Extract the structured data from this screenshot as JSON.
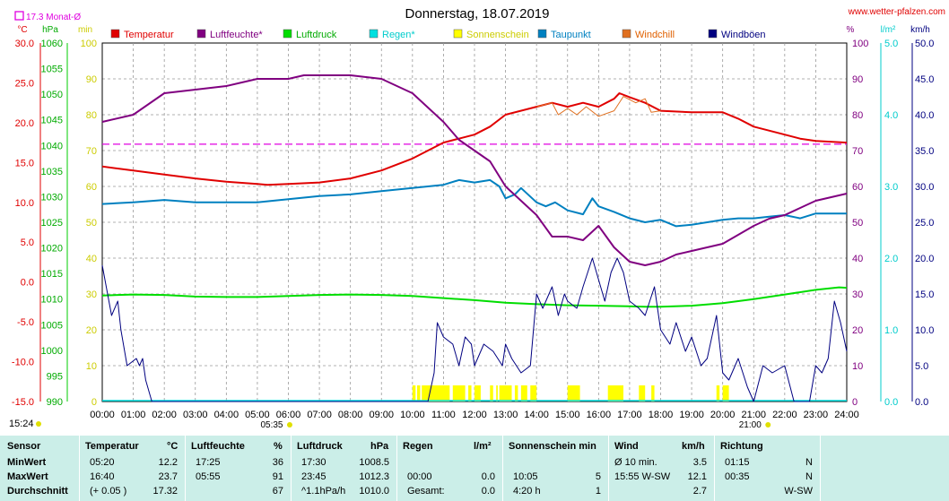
{
  "header": {
    "title": "Donnerstag, 18.07.2019",
    "site": "www.wetter-pfalzen.com",
    "avg_note": "17.3 Monat-Ø",
    "current_time": "15:24"
  },
  "colors": {
    "temperature": "#e00000",
    "humidity": "#800080",
    "pressure": "#00dd00",
    "rain": "#00e0e0",
    "sunshine": "#ffff00",
    "dewpoint": "#0080c0",
    "windchill": "#e07020",
    "windgust": "#000080",
    "avgline": "#e000e0",
    "grid": "#999999",
    "table_bg": "#cbeee8"
  },
  "chart_data": {
    "type": "line",
    "x_ticks": [
      "00:00",
      "01:00",
      "02:00",
      "03:00",
      "04:00",
      "05:00",
      "06:00",
      "07:00",
      "08:00",
      "09:00",
      "10:00",
      "11:00",
      "12:00",
      "13:00",
      "14:00",
      "15:00",
      "16:00",
      "17:00",
      "18:00",
      "19:00",
      "20:00",
      "21:00",
      "22:00",
      "23:00",
      "24:00"
    ],
    "x_marks": [
      {
        "label": "05:35",
        "hour": 5.58,
        "color": "#e0e000"
      },
      {
        "label": "21:00",
        "hour": 21.0,
        "color": "#e0e000"
      }
    ],
    "axes": {
      "temp": {
        "unit": "°C",
        "min": -15,
        "max": 30,
        "ticks": [
          "30.0",
          "25.0",
          "20.0",
          "15.0",
          "10.0",
          "5.0",
          "0.0",
          "-5.0",
          "-10.0",
          "-15.0"
        ]
      },
      "pressure": {
        "unit": "hPa",
        "min": 990,
        "max": 1060,
        "ticks": [
          "1060",
          "1055",
          "1050",
          "1045",
          "1040",
          "1035",
          "1030",
          "1025",
          "1020",
          "1015",
          "1010",
          "1005",
          "1000",
          "995",
          "990"
        ]
      },
      "minutes": {
        "unit": "min",
        "min": 0,
        "max": 100,
        "ticks": [
          "100",
          "90",
          "80",
          "70",
          "60",
          "50",
          "40",
          "30",
          "20",
          "10",
          "0"
        ]
      },
      "percent": {
        "unit": "%",
        "min": 0,
        "max": 100,
        "ticks": [
          "100",
          "90",
          "80",
          "70",
          "60",
          "50",
          "40",
          "30",
          "20",
          "10",
          "0"
        ]
      },
      "rain": {
        "unit": "l/m²",
        "min": 0,
        "max": 5,
        "ticks": [
          "5.0",
          "4.0",
          "3.0",
          "2.0",
          "1.0",
          "0.0"
        ]
      },
      "wind": {
        "unit": "km/h",
        "min": 0,
        "max": 50,
        "ticks": [
          "50.0",
          "45.0",
          "40.0",
          "35.0",
          "30.0",
          "25.0",
          "20.0",
          "15.0",
          "10.0",
          "5.0",
          "0.0"
        ]
      }
    },
    "legend": [
      "Temperatur",
      "Luftfeuchte*",
      "Luftdruck",
      "Regen*",
      "Sonnenschein",
      "Taupunkt",
      "Windchill",
      "Windböen"
    ],
    "avg_temp": 17.3,
    "series": [
      {
        "name": "Temperatur",
        "axis": "temp",
        "color": "#e00000",
        "points": [
          [
            0,
            14.5
          ],
          [
            1,
            14.0
          ],
          [
            2,
            13.5
          ],
          [
            3,
            13.0
          ],
          [
            4,
            12.6
          ],
          [
            5,
            12.3
          ],
          [
            5.33,
            12.2
          ],
          [
            6,
            12.3
          ],
          [
            7,
            12.5
          ],
          [
            8,
            13.0
          ],
          [
            9,
            14.0
          ],
          [
            10,
            15.5
          ],
          [
            10.5,
            16.5
          ],
          [
            11,
            17.5
          ],
          [
            12,
            18.5
          ],
          [
            12.5,
            19.5
          ],
          [
            13,
            21.0
          ],
          [
            14,
            22.0
          ],
          [
            14.5,
            22.5
          ],
          [
            15,
            22.0
          ],
          [
            15.5,
            22.5
          ],
          [
            16,
            22.0
          ],
          [
            16.5,
            23.0
          ],
          [
            16.67,
            23.7
          ],
          [
            17,
            23.2
          ],
          [
            17.5,
            22.5
          ],
          [
            18,
            21.5
          ],
          [
            19,
            21.3
          ],
          [
            20,
            21.3
          ],
          [
            20.5,
            20.5
          ],
          [
            21,
            19.5
          ],
          [
            22,
            18.5
          ],
          [
            22.5,
            18.0
          ],
          [
            23,
            17.7
          ],
          [
            24,
            17.5
          ]
        ]
      },
      {
        "name": "Windchill",
        "axis": "temp",
        "color": "#e07020",
        "points": [
          [
            14,
            22.0
          ],
          [
            14.5,
            22.5
          ],
          [
            14.7,
            21.0
          ],
          [
            15,
            21.8
          ],
          [
            15.3,
            21.0
          ],
          [
            15.6,
            22.0
          ],
          [
            16,
            20.8
          ],
          [
            16.5,
            21.5
          ],
          [
            16.8,
            23.3
          ],
          [
            17.2,
            22.5
          ],
          [
            17.5,
            23.0
          ],
          [
            17.7,
            21.3
          ],
          [
            18,
            21.5
          ]
        ]
      },
      {
        "name": "Taupunkt",
        "axis": "temp",
        "color": "#0080c0",
        "points": [
          [
            0,
            9.8
          ],
          [
            1,
            10.0
          ],
          [
            2,
            10.3
          ],
          [
            3,
            10.0
          ],
          [
            4,
            10.0
          ],
          [
            5,
            10.0
          ],
          [
            6,
            10.4
          ],
          [
            7,
            10.8
          ],
          [
            8,
            11.0
          ],
          [
            9,
            11.4
          ],
          [
            10,
            11.8
          ],
          [
            11,
            12.2
          ],
          [
            11.5,
            12.8
          ],
          [
            12,
            12.5
          ],
          [
            12.5,
            12.8
          ],
          [
            12.8,
            12.0
          ],
          [
            13,
            10.5
          ],
          [
            13.3,
            11.0
          ],
          [
            13.5,
            11.8
          ],
          [
            14,
            10.0
          ],
          [
            14.3,
            9.5
          ],
          [
            14.6,
            10.0
          ],
          [
            15,
            9.0
          ],
          [
            15.5,
            8.5
          ],
          [
            15.8,
            10.5
          ],
          [
            16,
            9.5
          ],
          [
            16.5,
            8.8
          ],
          [
            17,
            8.0
          ],
          [
            17.5,
            7.5
          ],
          [
            18,
            7.8
          ],
          [
            18.5,
            7.0
          ],
          [
            19,
            7.2
          ],
          [
            19.5,
            7.5
          ],
          [
            20,
            7.8
          ],
          [
            20.5,
            8.0
          ],
          [
            21,
            8.0
          ],
          [
            21.5,
            8.2
          ],
          [
            22,
            8.4
          ],
          [
            22.5,
            8.0
          ],
          [
            23,
            8.6
          ],
          [
            24,
            8.6
          ]
        ]
      },
      {
        "name": "Luftfeuchte",
        "axis": "percent",
        "color": "#800080",
        "points": [
          [
            0,
            78
          ],
          [
            1,
            80
          ],
          [
            2,
            86
          ],
          [
            3,
            87
          ],
          [
            4,
            88
          ],
          [
            4.5,
            89
          ],
          [
            5,
            90
          ],
          [
            6,
            90
          ],
          [
            6.5,
            91
          ],
          [
            7,
            91
          ],
          [
            8,
            91
          ],
          [
            9,
            90
          ],
          [
            10,
            86
          ],
          [
            11,
            78
          ],
          [
            11.5,
            73
          ],
          [
            12,
            70
          ],
          [
            12.5,
            67
          ],
          [
            13,
            60
          ],
          [
            13.5,
            56
          ],
          [
            14,
            52
          ],
          [
            14.5,
            46
          ],
          [
            15,
            46
          ],
          [
            15.5,
            45
          ],
          [
            16,
            49
          ],
          [
            16.5,
            43
          ],
          [
            17,
            39
          ],
          [
            17.5,
            38
          ],
          [
            18,
            39
          ],
          [
            18.5,
            41
          ],
          [
            19,
            42
          ],
          [
            20,
            44
          ],
          [
            21,
            49
          ],
          [
            21.5,
            51
          ],
          [
            22,
            52
          ],
          [
            22.5,
            54
          ],
          [
            23,
            56
          ],
          [
            24,
            58
          ]
        ]
      },
      {
        "name": "Luftdruck",
        "axis": "pressure",
        "color": "#00dd00",
        "points": [
          [
            0,
            1010.7
          ],
          [
            1,
            1010.9
          ],
          [
            2,
            1010.8
          ],
          [
            3,
            1010.5
          ],
          [
            4,
            1010.4
          ],
          [
            5,
            1010.4
          ],
          [
            6,
            1010.6
          ],
          [
            7,
            1010.8
          ],
          [
            8,
            1010.9
          ],
          [
            9,
            1010.8
          ],
          [
            10,
            1010.6
          ],
          [
            11,
            1010.2
          ],
          [
            12,
            1009.8
          ],
          [
            13,
            1009.3
          ],
          [
            14,
            1009.0
          ],
          [
            15,
            1008.8
          ],
          [
            16,
            1008.7
          ],
          [
            17,
            1008.6
          ],
          [
            17.5,
            1008.5
          ],
          [
            18,
            1008.5
          ],
          [
            19,
            1008.7
          ],
          [
            20,
            1009.2
          ],
          [
            21,
            1010.0
          ],
          [
            22,
            1010.9
          ],
          [
            23,
            1011.8
          ],
          [
            23.75,
            1012.3
          ],
          [
            24,
            1012.2
          ]
        ]
      },
      {
        "name": "Windböen",
        "axis": "wind",
        "color": "#000080",
        "points": [
          [
            0,
            19
          ],
          [
            0.3,
            12
          ],
          [
            0.5,
            14
          ],
          [
            0.6,
            10
          ],
          [
            0.8,
            5
          ],
          [
            1.1,
            6
          ],
          [
            1.2,
            5
          ],
          [
            1.3,
            6
          ],
          [
            1.4,
            3
          ],
          [
            1.6,
            0
          ],
          [
            10.5,
            0
          ],
          [
            10.7,
            4
          ],
          [
            10.8,
            11
          ],
          [
            11,
            9
          ],
          [
            11.3,
            8
          ],
          [
            11.5,
            5
          ],
          [
            11.7,
            9
          ],
          [
            11.9,
            8
          ],
          [
            12,
            5
          ],
          [
            12.3,
            8
          ],
          [
            12.6,
            7
          ],
          [
            12.9,
            5
          ],
          [
            13,
            8
          ],
          [
            13.2,
            6
          ],
          [
            13.5,
            4
          ],
          [
            13.8,
            5
          ],
          [
            14,
            15
          ],
          [
            14.2,
            13
          ],
          [
            14.5,
            16
          ],
          [
            14.7,
            12
          ],
          [
            14.9,
            15
          ],
          [
            15,
            14
          ],
          [
            15.3,
            13
          ],
          [
            15.5,
            16
          ],
          [
            15.8,
            20
          ],
          [
            16,
            17
          ],
          [
            16.2,
            14
          ],
          [
            16.4,
            18
          ],
          [
            16.6,
            20
          ],
          [
            16.8,
            18
          ],
          [
            17,
            14
          ],
          [
            17.3,
            13
          ],
          [
            17.5,
            12
          ],
          [
            17.8,
            16
          ],
          [
            18,
            10
          ],
          [
            18.3,
            8
          ],
          [
            18.5,
            11
          ],
          [
            18.8,
            7
          ],
          [
            19,
            9
          ],
          [
            19.3,
            5
          ],
          [
            19.5,
            6
          ],
          [
            19.8,
            12
          ],
          [
            20,
            4
          ],
          [
            20.2,
            3
          ],
          [
            20.5,
            6
          ],
          [
            20.8,
            2
          ],
          [
            21,
            0
          ],
          [
            21.3,
            5
          ],
          [
            21.6,
            4
          ],
          [
            22,
            5
          ],
          [
            22.3,
            0
          ],
          [
            22.6,
            0
          ],
          [
            22.8,
            0
          ],
          [
            23,
            5
          ],
          [
            23.2,
            4
          ],
          [
            23.4,
            6
          ],
          [
            23.6,
            14
          ],
          [
            23.8,
            11
          ],
          [
            24,
            7
          ]
        ]
      }
    ],
    "sunshine_hours": [
      [
        10.0,
        10.1
      ],
      [
        10.15,
        10.25
      ],
      [
        10.3,
        11.2
      ],
      [
        11.3,
        11.7
      ],
      [
        11.8,
        11.9
      ],
      [
        12,
        12.2
      ],
      [
        12.5,
        12.6
      ],
      [
        12.7,
        12.75
      ],
      [
        12.8,
        13.2
      ],
      [
        13.3,
        13.4
      ],
      [
        13.5,
        13.7
      ],
      [
        13.8,
        14.0
      ],
      [
        15.0,
        15.4
      ],
      [
        16.3,
        16.8
      ],
      [
        17.3,
        17.5
      ],
      [
        17.7,
        17.8
      ],
      [
        19.8,
        19.9
      ],
      [
        20.0,
        20.2
      ]
    ]
  },
  "table": {
    "columns": [
      {
        "header": "Sensor",
        "unit": ""
      },
      {
        "header": "Temperatur",
        "unit": "°C"
      },
      {
        "header": "Luftfeuchte",
        "unit": "%"
      },
      {
        "header": "Luftdruck",
        "unit": "hPa"
      },
      {
        "header": "Regen",
        "unit": "l/m²"
      },
      {
        "header": "Sonnenschein min",
        "unit": ""
      },
      {
        "header": "Wind",
        "unit": "km/h"
      },
      {
        "header": "Richtung",
        "unit": ""
      }
    ],
    "rows": [
      {
        "label": "MinWert",
        "temp_time": "05:20",
        "temp_val": "12.2",
        "hum_time": "17:25",
        "hum_val": "36",
        "press_time": "17:30",
        "press_val": "1008.5",
        "rain_time": "",
        "rain_val": "",
        "sun_time": "",
        "sun_val": "",
        "wind_time": "Ø 10 min.",
        "wind_val": "3.5",
        "dir_time": "01:15",
        "dir_val": "N"
      },
      {
        "label": "MaxWert",
        "temp_time": "16:40",
        "temp_val": "23.7",
        "hum_time": "05:55",
        "hum_val": "91",
        "press_time": "23:45",
        "press_val": "1012.3",
        "rain_time": "00:00",
        "rain_val": "0.0",
        "sun_time": "10:05",
        "sun_val": "5",
        "wind_time": "15:55   W-SW",
        "wind_val": "12.1",
        "dir_time": "00:35",
        "dir_val": "N"
      },
      {
        "label": "Durchschnitt",
        "temp_time": "(+ 0.05 )",
        "temp_val": "17.32",
        "hum_time": "",
        "hum_val": "67",
        "press_time": "^1.1hPa/h",
        "press_val": "1010.0",
        "rain_time": "Gesamt:",
        "rain_val": "0.0",
        "sun_time": "4:20 h",
        "sun_val": "1",
        "wind_time": "",
        "wind_val": "2.7",
        "dir_time": "",
        "dir_val": "W-SW"
      }
    ]
  }
}
